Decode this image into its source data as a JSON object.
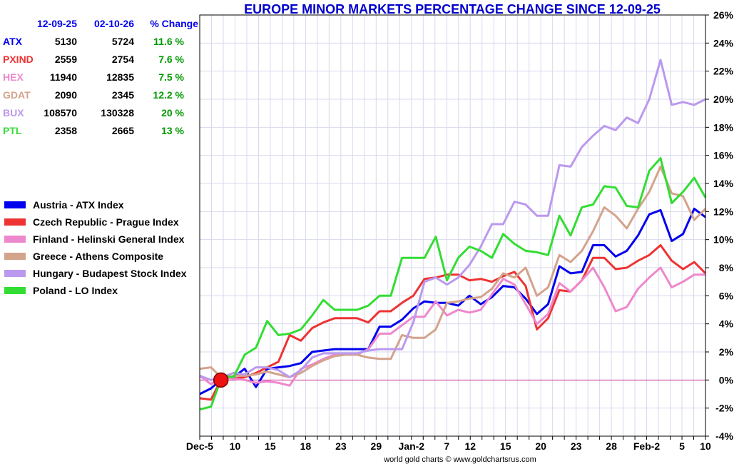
{
  "chart_data": {
    "type": "line",
    "title": "EUROPE MINOR MARKETS PERCENTAGE CHANGE SINCE 12-09-25",
    "credit": "world gold charts © www.goldchartsrus.com",
    "ylim": [
      -4,
      26
    ],
    "yticks": [
      -4,
      -2,
      0,
      2,
      4,
      6,
      8,
      10,
      12,
      14,
      16,
      18,
      20,
      22,
      24,
      26
    ],
    "ytick_labels": [
      "-4%",
      "-2%",
      "0%",
      "2%",
      "4%",
      "6%",
      "8%",
      "10%",
      "12%",
      "14%",
      "16%",
      "18%",
      "20%",
      "22%",
      "24%",
      "26%"
    ],
    "xlim": [
      0,
      43
    ],
    "xticks": [
      0,
      3,
      6,
      9,
      12,
      15,
      18,
      21,
      23,
      26,
      29,
      32,
      35,
      38,
      41,
      43
    ],
    "xtick_labels": [
      "Dec-5",
      "10",
      "15",
      "18",
      "23",
      "29",
      "Jan-2",
      "7",
      "12",
      "15",
      "20",
      "23",
      "28",
      "Feb-2",
      "5",
      "10"
    ],
    "grid": true,
    "baseline_color": "#cc3399",
    "marker": {
      "x": 1.8,
      "y": 0,
      "color": "#ee1111"
    },
    "table": {
      "headers": [
        "12-09-25",
        "02-10-26",
        "% Change"
      ],
      "rows": [
        {
          "code": "ATX",
          "start": "5130",
          "end": "5724",
          "pct": "11.6 %",
          "color": "#0000ee"
        },
        {
          "code": "PXIND",
          "start": "2559",
          "end": "2754",
          "pct": "7.6 %",
          "color": "#ee3333"
        },
        {
          "code": "HEX",
          "start": "11940",
          "end": "12835",
          "pct": "7.5 %",
          "color": "#ee88cc"
        },
        {
          "code": "GDAT",
          "start": "2090",
          "end": "2345",
          "pct": "12.2 %",
          "color": "#d4a38c"
        },
        {
          "code": "BUX",
          "start": "108570",
          "end": "130328",
          "pct": "20 %",
          "color": "#bb99ee"
        },
        {
          "code": "PTL",
          "start": "2358",
          "end": "2665",
          "pct": "13 %",
          "color": "#33dd33"
        }
      ]
    },
    "series": [
      {
        "name": "Austria - ATX Index",
        "color": "#0000ee",
        "values": [
          -1.0,
          -0.6,
          0.1,
          0.2,
          0.8,
          -0.5,
          0.8,
          0.9,
          1.0,
          1.2,
          2.0,
          2.1,
          2.2,
          2.2,
          2.2,
          2.2,
          3.8,
          3.8,
          4.3,
          5.1,
          5.6,
          5.5,
          5.5,
          5.3,
          6.0,
          5.4,
          5.9,
          6.7,
          6.6,
          5.8,
          4.7,
          5.4,
          8.1,
          7.6,
          7.7,
          9.6,
          9.6,
          8.8,
          9.2,
          10.3,
          11.8,
          12.1,
          9.9,
          10.4,
          12.2,
          11.6
        ]
      },
      {
        "name": "Czech Republic - Prague Index",
        "color": "#ee3333",
        "values": [
          -1.3,
          -1.4,
          0.2,
          0.1,
          0.2,
          0.5,
          0.9,
          1.3,
          3.2,
          2.8,
          3.7,
          4.1,
          4.4,
          4.4,
          4.4,
          4.1,
          4.9,
          4.9,
          5.5,
          6.0,
          7.2,
          7.3,
          7.5,
          7.5,
          7.1,
          7.2,
          7.0,
          7.4,
          7.7,
          6.7,
          3.6,
          4.4,
          6.4,
          6.3,
          7.1,
          8.7,
          8.7,
          7.9,
          8.0,
          8.5,
          8.9,
          9.6,
          8.5,
          7.9,
          8.4,
          7.6
        ]
      },
      {
        "name": "Finland - Helinski General Index",
        "color": "#ee88cc",
        "values": [
          0.3,
          -0.3,
          0.2,
          0.1,
          0.0,
          -0.2,
          -0.1,
          -0.2,
          -0.4,
          0.8,
          1.1,
          1.5,
          1.8,
          1.8,
          1.8,
          2.2,
          3.3,
          3.3,
          3.9,
          4.5,
          4.5,
          5.6,
          4.6,
          5.0,
          4.8,
          5.0,
          6.1,
          7.2,
          6.8,
          5.4,
          4.0,
          4.7,
          6.9,
          6.3,
          7.1,
          8.0,
          6.6,
          4.9,
          5.2,
          6.5,
          7.3,
          8.0,
          6.6,
          7.0,
          7.5,
          7.5
        ]
      },
      {
        "name": "Greece - Athens Composite",
        "color": "#d4a38c",
        "values": [
          0.8,
          0.9,
          0.1,
          0.3,
          0.3,
          0.4,
          0.6,
          0.4,
          0.2,
          0.5,
          1.0,
          1.4,
          1.7,
          1.8,
          1.8,
          1.6,
          1.5,
          1.5,
          3.2,
          3.0,
          3.0,
          3.6,
          5.5,
          5.6,
          5.8,
          5.9,
          6.5,
          7.6,
          7.3,
          8.0,
          6.0,
          6.6,
          8.9,
          8.4,
          9.2,
          10.6,
          12.3,
          11.7,
          10.8,
          12.2,
          13.4,
          15.2,
          13.3,
          13.1,
          11.4,
          12.2
        ]
      },
      {
        "name": "Hungary - Budapest Stock Index",
        "color": "#bb99ee",
        "values": [
          0.3,
          0.0,
          0.2,
          0.5,
          0.4,
          0.9,
          0.9,
          0.7,
          0.2,
          0.7,
          1.6,
          1.9,
          1.9,
          1.9,
          1.9,
          2.1,
          2.2,
          2.2,
          2.2,
          4.1,
          7.0,
          7.3,
          6.8,
          7.3,
          8.2,
          9.5,
          11.1,
          11.1,
          12.7,
          12.5,
          11.7,
          11.7,
          15.3,
          15.2,
          16.6,
          17.4,
          18.1,
          17.8,
          18.7,
          18.3,
          20.0,
          22.8,
          19.6,
          19.8,
          19.6,
          20.0
        ]
      },
      {
        "name": "Poland - LO Index",
        "color": "#33dd33",
        "values": [
          -2.1,
          -1.9,
          0.3,
          0.2,
          1.8,
          2.3,
          4.2,
          3.2,
          3.3,
          3.6,
          4.6,
          5.7,
          5.0,
          5.0,
          5.0,
          5.3,
          6.0,
          6.0,
          8.7,
          8.7,
          8.7,
          10.2,
          7.1,
          8.7,
          9.5,
          9.2,
          8.7,
          10.4,
          9.7,
          9.2,
          9.1,
          8.9,
          11.7,
          10.3,
          12.3,
          12.5,
          13.8,
          13.7,
          12.4,
          12.3,
          14.9,
          15.8,
          12.6,
          13.4,
          14.4,
          13.0
        ]
      }
    ]
  }
}
